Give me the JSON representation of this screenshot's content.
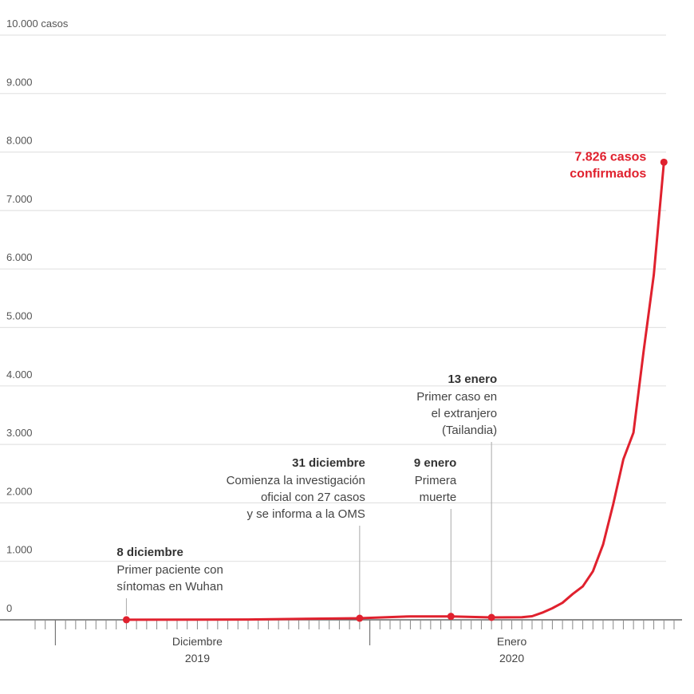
{
  "chart_data": {
    "type": "line",
    "ylim": [
      0,
      10000
    ],
    "y_ticks": [
      {
        "value": 0,
        "label": "0"
      },
      {
        "value": 1000,
        "label": "1.000"
      },
      {
        "value": 2000,
        "label": "2.000"
      },
      {
        "value": 3000,
        "label": "3.000"
      },
      {
        "value": 4000,
        "label": "4.000"
      },
      {
        "value": 5000,
        "label": "5.000"
      },
      {
        "value": 6000,
        "label": "6.000"
      },
      {
        "value": 7000,
        "label": "7.000"
      },
      {
        "value": 8000,
        "label": "8.000"
      },
      {
        "value": 9000,
        "label": "9.000"
      },
      {
        "value": 10000,
        "label": "10.000 casos"
      }
    ],
    "x_range": [
      "2019-11-29",
      "2020-01-31"
    ],
    "x_month_labels": [
      {
        "date": "2019-12-15",
        "line1": "Diciembre",
        "line2": "2019"
      },
      {
        "date": "2020-01-15",
        "line1": "Enero",
        "line2": "2020"
      }
    ],
    "x_month_starts": [
      "2019-12-01",
      "2020-01-01"
    ],
    "grid": true,
    "series": [
      {
        "color": "#e0212e",
        "points": [
          {
            "date": "2019-12-08",
            "value": 1
          },
          {
            "date": "2019-12-20",
            "value": 5
          },
          {
            "date": "2019-12-31",
            "value": 27
          },
          {
            "date": "2020-01-05",
            "value": 59
          },
          {
            "date": "2020-01-09",
            "value": 59
          },
          {
            "date": "2020-01-13",
            "value": 41
          },
          {
            "date": "2020-01-16",
            "value": 45
          },
          {
            "date": "2020-01-17",
            "value": 62
          },
          {
            "date": "2020-01-18",
            "value": 121
          },
          {
            "date": "2020-01-19",
            "value": 198
          },
          {
            "date": "2020-01-20",
            "value": 291
          },
          {
            "date": "2020-01-21",
            "value": 440
          },
          {
            "date": "2020-01-22",
            "value": 571
          },
          {
            "date": "2020-01-23",
            "value": 830
          },
          {
            "date": "2020-01-24",
            "value": 1287
          },
          {
            "date": "2020-01-25",
            "value": 1975
          },
          {
            "date": "2020-01-26",
            "value": 2744
          },
          {
            "date": "2020-01-27",
            "value": 3200
          },
          {
            "date": "2020-01-28",
            "value": 4600
          },
          {
            "date": "2020-01-29",
            "value": 5900
          },
          {
            "date": "2020-01-30",
            "value": 7826
          }
        ],
        "markers": [
          {
            "date": "2019-12-08",
            "value": 1
          },
          {
            "date": "2019-12-31",
            "value": 27
          },
          {
            "date": "2020-01-09",
            "value": 59
          },
          {
            "date": "2020-01-13",
            "value": 41
          },
          {
            "date": "2020-01-30",
            "value": 7826
          }
        ]
      }
    ],
    "annotations": [
      {
        "date": "2019-12-08",
        "title": "8 diciembre",
        "lines": [
          "Primer paciente con",
          "síntomas en Wuhan"
        ],
        "align": "left"
      },
      {
        "date": "2019-12-31",
        "title": "31 diciembre",
        "lines": [
          "Comienza la investigación",
          "oficial con 27 casos",
          "y se informa a la OMS"
        ],
        "align": "right"
      },
      {
        "date": "2020-01-09",
        "title": "9 enero",
        "lines": [
          "Primera",
          "muerte"
        ],
        "align": "right"
      },
      {
        "date": "2020-01-13",
        "title": "13 enero",
        "lines": [
          "Primer caso en",
          "el extranjero",
          "(Tailandia)"
        ],
        "align": "right"
      }
    ],
    "final_label": {
      "lines": [
        "7.826 casos",
        "confirmados"
      ],
      "color": "#e0212e"
    }
  }
}
